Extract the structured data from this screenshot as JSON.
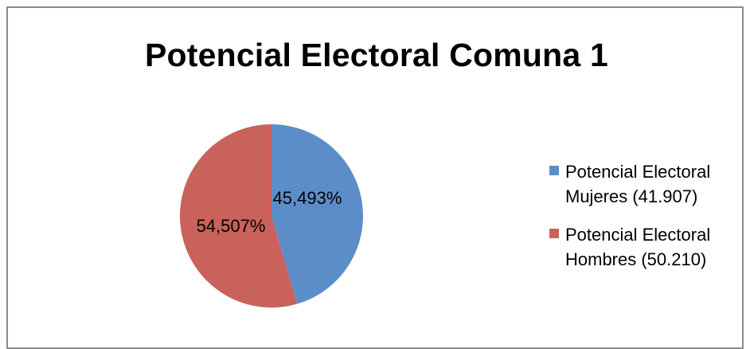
{
  "chart_data": {
    "type": "pie",
    "title": "Potencial Electoral Comuna 1",
    "slices": [
      {
        "label": "Potencial Electoral Mujeres (41.907)",
        "value": 41907,
        "percent_label": "45,493%",
        "color": "#5b8ec9"
      },
      {
        "label": "Potencial Electoral Hombres (50.210)",
        "value": 50210,
        "percent_label": "54,507%",
        "color": "#c9625a"
      }
    ],
    "legend_position": "right"
  },
  "legend": {
    "items": [
      {
        "line1": "Potencial Electoral",
        "line2": "Mujeres (41.907)"
      },
      {
        "line1": "Potencial Electoral",
        "line2": "Hombres (50.210)"
      }
    ]
  }
}
